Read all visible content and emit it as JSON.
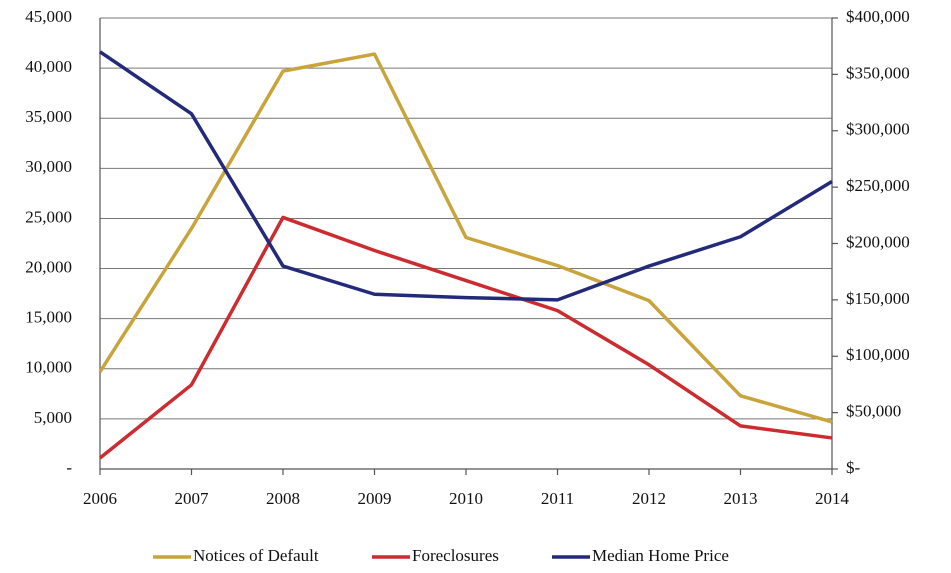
{
  "chart_data": {
    "type": "line",
    "x": [
      2006,
      2007,
      2008,
      2009,
      2010,
      2011,
      2012,
      2013,
      2014
    ],
    "xlim": [
      2006,
      2014
    ],
    "xticks": [
      2006,
      2007,
      2008,
      2009,
      2010,
      2011,
      2012,
      2013,
      2014
    ],
    "ylim": [
      0,
      45000
    ],
    "yticks": [
      {
        "value": 0,
        "label": "-"
      },
      {
        "value": 5000,
        "label": "5,000"
      },
      {
        "value": 10000,
        "label": "10,000"
      },
      {
        "value": 15000,
        "label": "15,000"
      },
      {
        "value": 20000,
        "label": "20,000"
      },
      {
        "value": 25000,
        "label": "25,000"
      },
      {
        "value": 30000,
        "label": "30,000"
      },
      {
        "value": 35000,
        "label": "35,000"
      },
      {
        "value": 40000,
        "label": "40,000"
      },
      {
        "value": 45000,
        "label": "45,000"
      }
    ],
    "y2lim": [
      0,
      400000
    ],
    "y2ticks": [
      {
        "value": 0,
        "label": "$-"
      },
      {
        "value": 50000,
        "label": "$50,000"
      },
      {
        "value": 100000,
        "label": "$100,000"
      },
      {
        "value": 150000,
        "label": "$150,000"
      },
      {
        "value": 200000,
        "label": "$200,000"
      },
      {
        "value": 250000,
        "label": "$250,000"
      },
      {
        "value": 300000,
        "label": "$300,000"
      },
      {
        "value": 350000,
        "label": "$350,000"
      },
      {
        "value": 400000,
        "label": "$400,000"
      }
    ],
    "grid": true,
    "legend": "bottom",
    "series": [
      {
        "name": "Notices of Default",
        "color": "#c9a43a",
        "values": [
          9700,
          24000,
          39700,
          41400,
          23100,
          20300,
          16800,
          7300,
          4700
        ]
      },
      {
        "name": "Foreclosures",
        "color": "#cc2b2f",
        "values": [
          1100,
          8400,
          25100,
          21800,
          18800,
          15800,
          10400,
          4300,
          3100
        ]
      },
      {
        "name": "Median Home Price",
        "color": "#232a7a",
        "axis": "y2",
        "values": [
          370000,
          315000,
          180000,
          155000,
          152000,
          150000,
          180000,
          206000,
          255000
        ]
      }
    ]
  }
}
